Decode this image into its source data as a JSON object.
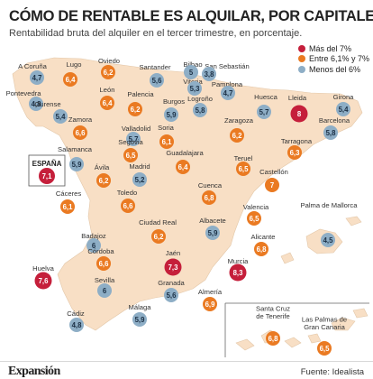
{
  "header": {
    "title": "CÓMO DE RENTABLE ES ALQUILAR, POR CAPITALES",
    "subtitle": "Rentabilidad bruta del alquiler en el tercer trimestre, en porcentaje."
  },
  "legend": [
    {
      "label": "Más del 7%",
      "color": "#c51f3b"
    },
    {
      "label": "Entre 6,1% y 7%",
      "color": "#ea7a22"
    },
    {
      "label": "Menos del 6%",
      "color": "#8eaec6"
    }
  ],
  "colors": {
    "land": "#f8dfc5",
    "sea": "#ffffff",
    "high": "#c51f3b",
    "mid": "#ea7a22",
    "low": "#8eaec6"
  },
  "national": {
    "label": "ESPAÑA",
    "value": "7,1"
  },
  "cities": [
    {
      "name": "A Coruña",
      "value": "4,7",
      "level": "low"
    },
    {
      "name": "Lugo",
      "value": "6,4",
      "level": "mid"
    },
    {
      "name": "Oviedo",
      "value": "6,2",
      "level": "mid"
    },
    {
      "name": "Santander",
      "value": "5,6",
      "level": "low"
    },
    {
      "name": "Bilbao",
      "value": "5",
      "level": "low"
    },
    {
      "name": "San Sebastián",
      "value": "3,8",
      "level": "low"
    },
    {
      "name": "Vitoria",
      "value": "5,3",
      "level": "low"
    },
    {
      "name": "Pamplona",
      "value": "4,7",
      "level": "low"
    },
    {
      "name": "Huesca",
      "value": "5,7",
      "level": "low"
    },
    {
      "name": "Lleida",
      "value": "8",
      "level": "high"
    },
    {
      "name": "Girona",
      "value": "5,4",
      "level": "low"
    },
    {
      "name": "Pontevedra",
      "value": "4,8",
      "level": "low"
    },
    {
      "name": "Ourense",
      "value": "5,4",
      "level": "low"
    },
    {
      "name": "León",
      "value": "6,4",
      "level": "mid"
    },
    {
      "name": "Palencia",
      "value": "6,2",
      "level": "mid"
    },
    {
      "name": "Burgos",
      "value": "5,9",
      "level": "low"
    },
    {
      "name": "Logroño",
      "value": "5,8",
      "level": "low"
    },
    {
      "name": "Zaragoza",
      "value": "6,2",
      "level": "mid"
    },
    {
      "name": "Barcelona",
      "value": "5,8",
      "level": "low"
    },
    {
      "name": "Tarragona",
      "value": "6,3",
      "level": "mid"
    },
    {
      "name": "Zamora",
      "value": "6,6",
      "level": "mid"
    },
    {
      "name": "Valladolid",
      "value": "5,7",
      "level": "low"
    },
    {
      "name": "Soria",
      "value": "6,1",
      "level": "mid"
    },
    {
      "name": "Salamanca",
      "value": "5,9",
      "level": "low"
    },
    {
      "name": "Segovia",
      "value": "6,5",
      "level": "mid"
    },
    {
      "name": "Guadalajara",
      "value": "6,4",
      "level": "mid"
    },
    {
      "name": "Teruel",
      "value": "6,5",
      "level": "mid"
    },
    {
      "name": "Castellón",
      "value": "7",
      "level": "mid"
    },
    {
      "name": "Ávila",
      "value": "6,2",
      "level": "mid"
    },
    {
      "name": "Madrid",
      "value": "5,2",
      "level": "low"
    },
    {
      "name": "Cuenca",
      "value": "6,8",
      "level": "mid"
    },
    {
      "name": "Cáceres",
      "value": "6,1",
      "level": "mid"
    },
    {
      "name": "Toledo",
      "value": "6,6",
      "level": "mid"
    },
    {
      "name": "Valencia",
      "value": "6,5",
      "level": "mid"
    },
    {
      "name": "Palma de Mallorca",
      "value": "4,5",
      "level": "low"
    },
    {
      "name": "Ciudad Real",
      "value": "6,2",
      "level": "mid"
    },
    {
      "name": "Albacete",
      "value": "5,9",
      "level": "low"
    },
    {
      "name": "Badajoz",
      "value": "6",
      "level": "low"
    },
    {
      "name": "Alicante",
      "value": "6,8",
      "level": "mid"
    },
    {
      "name": "Córdoba",
      "value": "6,6",
      "level": "mid"
    },
    {
      "name": "Jaén",
      "value": "7,3",
      "level": "high"
    },
    {
      "name": "Murcia",
      "value": "8,3",
      "level": "high"
    },
    {
      "name": "Huelva",
      "value": "7,6",
      "level": "high"
    },
    {
      "name": "Sevilla",
      "value": "6",
      "level": "low"
    },
    {
      "name": "Granada",
      "value": "5,6",
      "level": "low"
    },
    {
      "name": "Almería",
      "value": "6,9",
      "level": "mid"
    },
    {
      "name": "Cádiz",
      "value": "4,8",
      "level": "low"
    },
    {
      "name": "Málaga",
      "value": "5,9",
      "level": "low"
    },
    {
      "name": "Santa Cruz de Tenerife",
      "value": "6,8",
      "level": "mid"
    },
    {
      "name": "Las Palmas de Gran Canaria",
      "value": "6,5",
      "level": "mid"
    }
  ],
  "footer": {
    "logo": "Expansión",
    "source": "Fuente: Idealista"
  }
}
